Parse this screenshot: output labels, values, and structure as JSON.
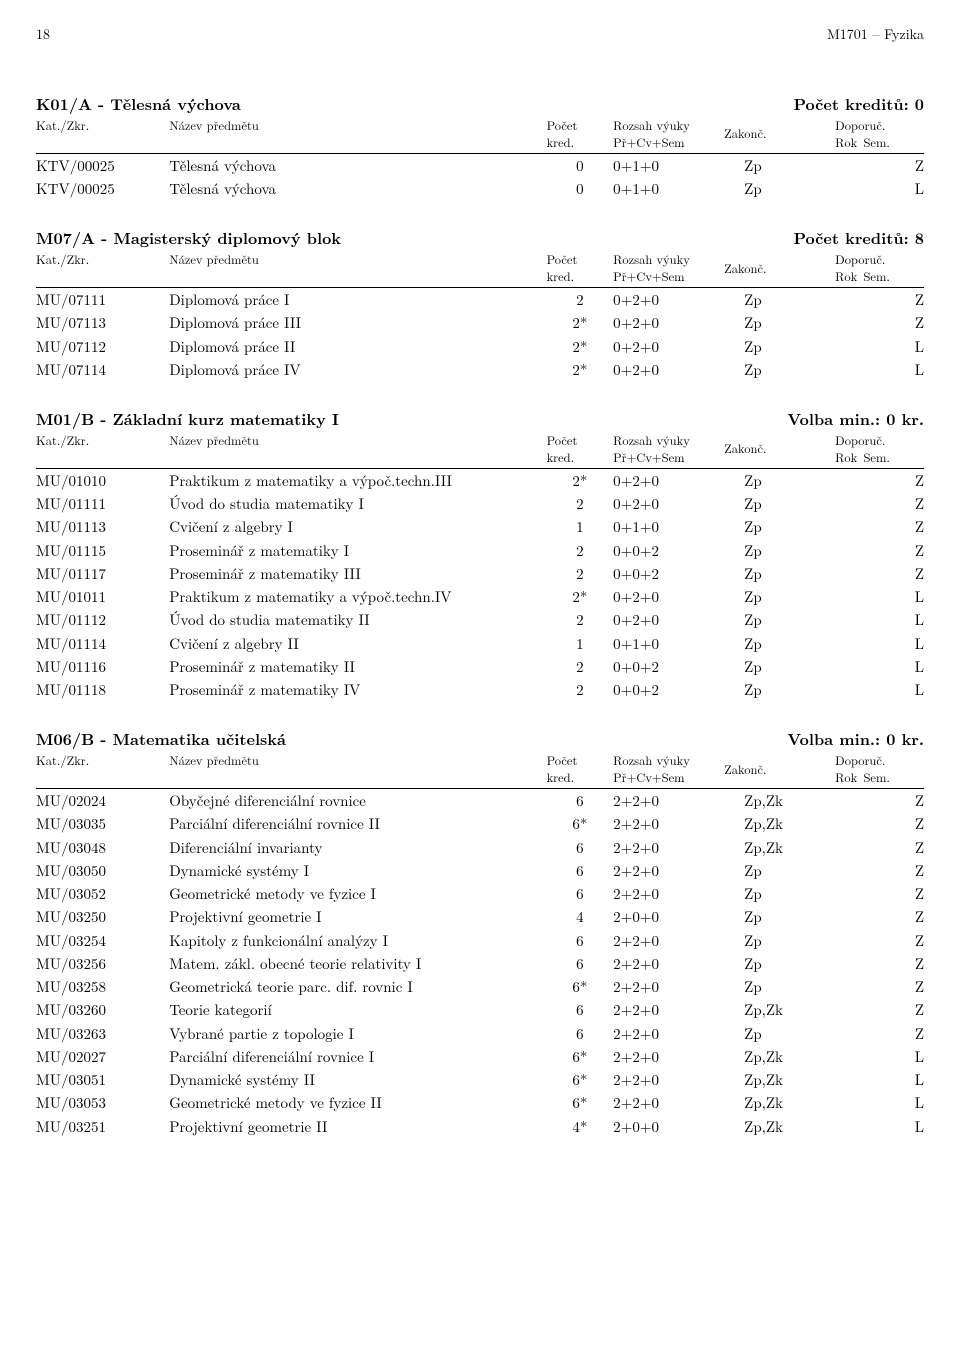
{
  "page": {
    "number": "18",
    "header_right": "M1701 – Fyzika"
  },
  "header_labels": {
    "kat": "Kat./Zkr.",
    "name": "Název předmětu",
    "kred_top": "Počet",
    "kred_bot": "kred.",
    "rozsah_top": "Rozsah výuky",
    "rozsah_bot": "Př+Cv+Sem",
    "zakonc": "Zakonč.",
    "doporuc_top": "Doporuč.",
    "rok": "Rok",
    "sem": "Sem."
  },
  "sections": [
    {
      "title_left": "K01/A - Tělesná výchova",
      "title_right": "Počet kreditů: 0",
      "rows": [
        {
          "kat": "KTV/00025",
          "name": "Tělesná výchova",
          "kred": "0",
          "rozsah": "0+1+0",
          "zakonc": "Zp",
          "rok": "",
          "sem": "Z"
        },
        {
          "kat": "KTV/00025",
          "name": "Tělesná výchova",
          "kred": "0",
          "rozsah": "0+1+0",
          "zakonc": "Zp",
          "rok": "",
          "sem": "L"
        }
      ]
    },
    {
      "title_left": "M07/A - Magisterský diplomový blok",
      "title_right": "Počet kreditů: 8",
      "rows": [
        {
          "kat": "MU/07111",
          "name": "Diplomová práce I",
          "kred": "2",
          "rozsah": "0+2+0",
          "zakonc": "Zp",
          "rok": "",
          "sem": "Z"
        },
        {
          "kat": "MU/07113",
          "name": "Diplomová práce III",
          "kred": "2*",
          "rozsah": "0+2+0",
          "zakonc": "Zp",
          "rok": "",
          "sem": "Z"
        },
        {
          "kat": "MU/07112",
          "name": "Diplomová práce II",
          "kred": "2*",
          "rozsah": "0+2+0",
          "zakonc": "Zp",
          "rok": "",
          "sem": "L"
        },
        {
          "kat": "MU/07114",
          "name": "Diplomová práce IV",
          "kred": "2*",
          "rozsah": "0+2+0",
          "zakonc": "Zp",
          "rok": "",
          "sem": "L"
        }
      ]
    },
    {
      "title_left": "M01/B - Základní kurz matematiky I",
      "title_right": "Volba min.: 0 kr.",
      "rows": [
        {
          "kat": "MU/01010",
          "name": "Praktikum z matematiky a výpoč.techn.III",
          "kred": "2*",
          "rozsah": "0+2+0",
          "zakonc": "Zp",
          "rok": "",
          "sem": "Z"
        },
        {
          "kat": "MU/01111",
          "name": "Úvod do studia matematiky I",
          "kred": "2",
          "rozsah": "0+2+0",
          "zakonc": "Zp",
          "rok": "",
          "sem": "Z"
        },
        {
          "kat": "MU/01113",
          "name": "Cvičení z algebry I",
          "kred": "1",
          "rozsah": "0+1+0",
          "zakonc": "Zp",
          "rok": "",
          "sem": "Z"
        },
        {
          "kat": "MU/01115",
          "name": "Proseminář z matematiky I",
          "kred": "2",
          "rozsah": "0+0+2",
          "zakonc": "Zp",
          "rok": "",
          "sem": "Z"
        },
        {
          "kat": "MU/01117",
          "name": "Proseminář z matematiky III",
          "kred": "2",
          "rozsah": "0+0+2",
          "zakonc": "Zp",
          "rok": "",
          "sem": "Z"
        },
        {
          "kat": "MU/01011",
          "name": "Praktikum z matematiky a výpoč.techn.IV",
          "kred": "2*",
          "rozsah": "0+2+0",
          "zakonc": "Zp",
          "rok": "",
          "sem": "L"
        },
        {
          "kat": "MU/01112",
          "name": "Úvod do studia matematiky II",
          "kred": "2",
          "rozsah": "0+2+0",
          "zakonc": "Zp",
          "rok": "",
          "sem": "L"
        },
        {
          "kat": "MU/01114",
          "name": "Cvičení z algebry II",
          "kred": "1",
          "rozsah": "0+1+0",
          "zakonc": "Zp",
          "rok": "",
          "sem": "L"
        },
        {
          "kat": "MU/01116",
          "name": "Proseminář z matematiky II",
          "kred": "2",
          "rozsah": "0+0+2",
          "zakonc": "Zp",
          "rok": "",
          "sem": "L"
        },
        {
          "kat": "MU/01118",
          "name": "Proseminář z matematiky IV",
          "kred": "2",
          "rozsah": "0+0+2",
          "zakonc": "Zp",
          "rok": "",
          "sem": "L"
        }
      ]
    },
    {
      "title_left": "M06/B - Matematika učitelská",
      "title_right": "Volba min.: 0 kr.",
      "rows": [
        {
          "kat": "MU/02024",
          "name": "Obyčejné diferenciální rovnice",
          "kred": "6",
          "rozsah": "2+2+0",
          "zakonc": "Zp,Zk",
          "rok": "",
          "sem": "Z"
        },
        {
          "kat": "MU/03035",
          "name": "Parciální diferenciální rovnice II",
          "kred": "6*",
          "rozsah": "2+2+0",
          "zakonc": "Zp,Zk",
          "rok": "",
          "sem": "Z"
        },
        {
          "kat": "MU/03048",
          "name": "Diferenciální invarianty",
          "kred": "6",
          "rozsah": "2+2+0",
          "zakonc": "Zp,Zk",
          "rok": "",
          "sem": "Z"
        },
        {
          "kat": "MU/03050",
          "name": "Dynamické systémy I",
          "kred": "6",
          "rozsah": "2+2+0",
          "zakonc": "Zp",
          "rok": "",
          "sem": "Z"
        },
        {
          "kat": "MU/03052",
          "name": "Geometrické metody ve fyzice I",
          "kred": "6",
          "rozsah": "2+2+0",
          "zakonc": "Zp",
          "rok": "",
          "sem": "Z"
        },
        {
          "kat": "MU/03250",
          "name": "Projektivní geometrie I",
          "kred": "4",
          "rozsah": "2+0+0",
          "zakonc": "Zp",
          "rok": "",
          "sem": "Z"
        },
        {
          "kat": "MU/03254",
          "name": "Kapitoly z funkcionální analýzy I",
          "kred": "6",
          "rozsah": "2+2+0",
          "zakonc": "Zp",
          "rok": "",
          "sem": "Z"
        },
        {
          "kat": "MU/03256",
          "name": "Matem. zákl. obecné teorie relativity I",
          "kred": "6",
          "rozsah": "2+2+0",
          "zakonc": "Zp",
          "rok": "",
          "sem": "Z"
        },
        {
          "kat": "MU/03258",
          "name": "Geometrická teorie parc. dif. rovnic I",
          "kred": "6*",
          "rozsah": "2+2+0",
          "zakonc": "Zp",
          "rok": "",
          "sem": "Z"
        },
        {
          "kat": "MU/03260",
          "name": "Teorie kategorií",
          "kred": "6",
          "rozsah": "2+2+0",
          "zakonc": "Zp,Zk",
          "rok": "",
          "sem": "Z"
        },
        {
          "kat": "MU/03263",
          "name": "Vybrané partie z topologie I",
          "kred": "6",
          "rozsah": "2+2+0",
          "zakonc": "Zp",
          "rok": "",
          "sem": "Z"
        },
        {
          "kat": "MU/02027",
          "name": "Parciální diferenciální rovnice I",
          "kred": "6*",
          "rozsah": "2+2+0",
          "zakonc": "Zp,Zk",
          "rok": "",
          "sem": "L"
        },
        {
          "kat": "MU/03051",
          "name": "Dynamické systémy II",
          "kred": "6*",
          "rozsah": "2+2+0",
          "zakonc": "Zp,Zk",
          "rok": "",
          "sem": "L"
        },
        {
          "kat": "MU/03053",
          "name": "Geometrické metody ve fyzice II",
          "kred": "6*",
          "rozsah": "2+2+0",
          "zakonc": "Zp,Zk",
          "rok": "",
          "sem": "L"
        },
        {
          "kat": "MU/03251",
          "name": "Projektivní geometrie II",
          "kred": "4*",
          "rozsah": "2+0+0",
          "zakonc": "Zp,Zk",
          "rok": "",
          "sem": "L"
        }
      ]
    }
  ]
}
